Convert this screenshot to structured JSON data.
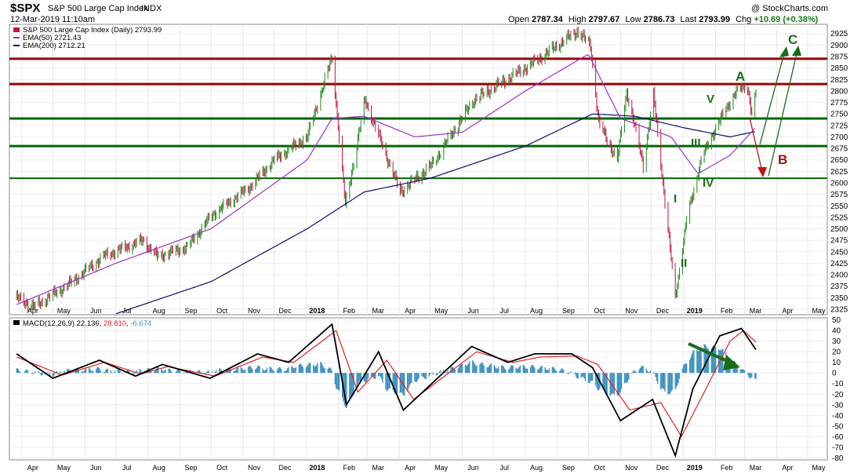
{
  "header": {
    "symbol": "$SPX",
    "name": "S&P 500 Large Cap Index",
    "exchange": "INDX",
    "datetime": "12-Mar-2019 11:10am",
    "watermark": "@ StockCharts.com",
    "open_label": "Open",
    "open": "2787.34",
    "high_label": "High",
    "high": "2797.67",
    "low_label": "Low",
    "low": "2786.73",
    "last_label": "Last",
    "last": "2793.99",
    "chg_label": "Chg",
    "chg": "+10.69 (+0.38%)"
  },
  "legend": {
    "price": "S&P 500 Large Cap Index (Daily) 2793.99",
    "ema50": "EMA(50) 2721.43",
    "ema200": "EMA(200) 2712.21"
  },
  "macd_legend": {
    "label": "MACD(12,26,9)",
    "macd": "22.136",
    "signal": "28.810",
    "hist": "-6.674"
  },
  "colors": {
    "up": "#1f8a1f",
    "down": "#c0143c",
    "ema50": "#9b30c8",
    "ema200": "#0d0d73",
    "resistance": "#990000",
    "support": "#006600",
    "macd_line": "#000000",
    "signal_line": "#e02020",
    "histogram": "#3a8ebf"
  },
  "chart_data": [
    {
      "type": "line",
      "title": "S&P 500 Large Cap Index (Daily)",
      "x_labels": [
        "Apr",
        "May",
        "Jun",
        "Jul",
        "Aug",
        "Sep",
        "Oct",
        "Nov",
        "Dec",
        "2018",
        "Feb",
        "Mar",
        "Apr",
        "May",
        "Jun",
        "Jul",
        "Aug",
        "Sep",
        "Oct",
        "Nov",
        "Dec",
        "2019",
        "Feb",
        "Mar",
        "Apr",
        "May"
      ],
      "y_ticks": [
        2325,
        2350,
        2375,
        2400,
        2425,
        2450,
        2475,
        2500,
        2525,
        2550,
        2575,
        2600,
        2625,
        2650,
        2675,
        2700,
        2725,
        2750,
        2775,
        2800,
        2825,
        2850,
        2875,
        2900,
        2925
      ],
      "ylim": [
        2313,
        2945
      ],
      "series": [
        {
          "name": "S&P 500 Large Cap Index (Daily)",
          "x": [
            "2017-03-27",
            "2017-04-13",
            "2017-05-17",
            "2017-06-19",
            "2017-07-27",
            "2017-08-10",
            "2017-09-08",
            "2017-10-02",
            "2017-11-07",
            "2017-12-01",
            "2018-01-02",
            "2018-01-26",
            "2018-02-08",
            "2018-02-27",
            "2018-04-02",
            "2018-05-03",
            "2018-06-12",
            "2018-08-08",
            "2018-09-20",
            "2018-10-03",
            "2018-10-11",
            "2018-10-29",
            "2018-11-07",
            "2018-11-23",
            "2018-12-03",
            "2018-12-24",
            "2019-01-04",
            "2019-01-18",
            "2019-02-01",
            "2019-02-21",
            "2019-03-04",
            "2019-03-08",
            "2019-03-12"
          ],
          "values": [
            2350,
            2330,
            2380,
            2440,
            2475,
            2440,
            2460,
            2530,
            2590,
            2650,
            2700,
            2873,
            2550,
            2780,
            2580,
            2640,
            2780,
            2860,
            2930,
            2900,
            2730,
            2650,
            2800,
            2640,
            2790,
            2350,
            2520,
            2650,
            2720,
            2800,
            2810,
            2750,
            2794
          ]
        },
        {
          "name": "EMA(50)",
          "x": [
            "2017-03-27",
            "2017-07-01",
            "2017-10-01",
            "2018-01-02",
            "2018-01-26",
            "2018-02-26",
            "2018-04-16",
            "2018-06-01",
            "2018-08-01",
            "2018-10-01",
            "2018-11-01",
            "2018-12-20",
            "2019-01-15",
            "2019-02-15",
            "2019-03-12"
          ],
          "values": [
            2335,
            2425,
            2500,
            2650,
            2740,
            2745,
            2700,
            2710,
            2800,
            2880,
            2740,
            2700,
            2620,
            2660,
            2721
          ]
        },
        {
          "name": "EMA(200)",
          "x": [
            "2017-07-01",
            "2017-10-01",
            "2018-01-02",
            "2018-02-26",
            "2018-05-01",
            "2018-08-01",
            "2018-10-05",
            "2018-11-15",
            "2019-01-01",
            "2019-02-15",
            "2019-03-12"
          ],
          "values": [
            2315,
            2385,
            2500,
            2580,
            2610,
            2680,
            2750,
            2745,
            2720,
            2700,
            2712
          ]
        }
      ],
      "levels": {
        "resistance": [
          2870,
          2815
        ],
        "support": [
          2740,
          2680,
          2610
        ]
      },
      "annotations": [
        "A",
        "B",
        "C",
        "V",
        "III",
        "IV",
        "I",
        "II"
      ]
    },
    {
      "type": "line",
      "title": "MACD(12,26,9)",
      "x_labels": [
        "Apr",
        "May",
        "Jun",
        "Jul",
        "Aug",
        "Sep",
        "Oct",
        "Nov",
        "Dec",
        "2018",
        "Feb",
        "Mar",
        "Apr",
        "May",
        "Jun",
        "Jul",
        "Aug",
        "Sep",
        "Oct",
        "Nov",
        "Dec",
        "2019",
        "Feb",
        "Mar",
        "Apr",
        "May"
      ],
      "y_ticks": [
        50,
        40,
        30,
        20,
        10,
        0,
        -10,
        -20,
        -30,
        -40,
        -50,
        -60,
        -70,
        -80
      ],
      "ylim": [
        -82,
        52
      ],
      "series": [
        {
          "name": "MACD",
          "x": [
            "2017-03-27",
            "2017-05-01",
            "2017-06-15",
            "2017-07-20",
            "2017-08-15",
            "2017-09-30",
            "2017-11-15",
            "2017-12-15",
            "2018-01-26",
            "2018-02-09",
            "2018-03-12",
            "2018-04-05",
            "2018-06-10",
            "2018-07-15",
            "2018-08-10",
            "2018-09-15",
            "2018-10-05",
            "2018-11-01",
            "2018-12-02",
            "2018-12-24",
            "2019-01-10",
            "2019-02-05",
            "2019-02-26",
            "2019-03-12"
          ],
          "values": [
            18,
            -5,
            12,
            -3,
            8,
            -5,
            18,
            10,
            46,
            -30,
            20,
            -35,
            25,
            10,
            18,
            18,
            5,
            -45,
            -25,
            -78,
            -15,
            35,
            42,
            22
          ]
        },
        {
          "name": "Signal",
          "x": [
            "2017-03-27",
            "2017-05-10",
            "2017-06-20",
            "2017-07-25",
            "2017-08-20",
            "2017-10-05",
            "2017-11-20",
            "2017-12-20",
            "2018-01-30",
            "2018-02-20",
            "2018-03-20",
            "2018-04-15",
            "2018-06-15",
            "2018-07-20",
            "2018-08-15",
            "2018-09-20",
            "2018-10-10",
            "2018-11-10",
            "2018-12-10",
            "2018-12-30",
            "2019-01-20",
            "2019-02-15",
            "2019-02-28",
            "2019-03-12"
          ],
          "values": [
            15,
            -2,
            10,
            -1,
            6,
            -3,
            15,
            10,
            40,
            -18,
            12,
            -25,
            20,
            10,
            15,
            16,
            8,
            -35,
            -28,
            -60,
            -20,
            30,
            40,
            29
          ]
        },
        {
          "name": "Histogram",
          "x": [
            "2017-04-15",
            "2017-07-01",
            "2017-10-01",
            "2018-01-15",
            "2018-02-12",
            "2018-04-10",
            "2018-06-15",
            "2018-09-01",
            "2018-10-25",
            "2018-11-20",
            "2018-12-15",
            "2019-01-20",
            "2019-02-10",
            "2019-03-12"
          ],
          "values": [
            2,
            4,
            3,
            8,
            -22,
            -14,
            12,
            4,
            -20,
            10,
            -15,
            22,
            18,
            -7
          ]
        }
      ],
      "annotations": [
        "arrow"
      ]
    }
  ]
}
